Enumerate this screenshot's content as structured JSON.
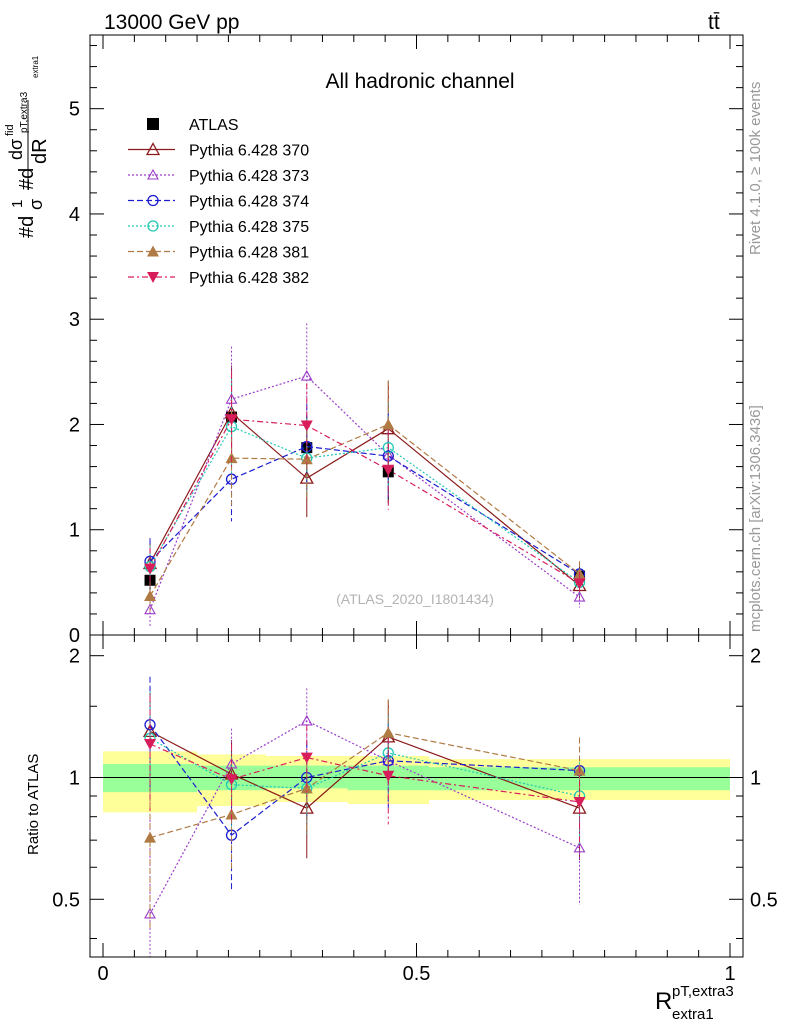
{
  "header": {
    "energy_label": "13000 GeV pp",
    "process_label": "tt̄"
  },
  "side_labels": {
    "rivet": "Rivet 4.1.0, ≥ 100k events",
    "mcplots": "mcplots.cern.ch [arXiv:1306.3436]"
  },
  "chart_data": [
    {
      "type": "line",
      "title": "All hadronic channel",
      "analysis_label": "(ATLAS_2020_I1801434)",
      "xlabel": "R_extra1^pT,extra3",
      "xlabel_main": "R",
      "xlabel_sup": "pT,extra3",
      "xlabel_sub": "extra1",
      "ylabel": "#d 1/σ #d dσ^fid/dR_pT,extra3/extra1",
      "xlim": [
        0,
        1
      ],
      "ylim": [
        0,
        5.7
      ],
      "x_ticks": [
        "0",
        "0.5",
        "1"
      ],
      "y_ticks": [
        "0",
        "1",
        "2",
        "3",
        "4",
        "5"
      ],
      "x": [
        0.075,
        0.205,
        0.325,
        0.455,
        0.76
      ],
      "series": [
        {
          "name": "ATLAS",
          "color": "#000000",
          "values": [
            0.52,
            2.07,
            1.78,
            1.55,
            0.56
          ],
          "err": [
            0.12,
            0.35,
            0.3,
            0.3,
            0.1
          ]
        },
        {
          "name": "Pythia 6.428 370",
          "color": "#8b1a1a",
          "values": [
            0.68,
            2.11,
            1.49,
            1.96,
            0.47
          ],
          "err": [
            0.2,
            0.45,
            0.37,
            0.45,
            0.12
          ]
        },
        {
          "name": "Pythia 6.428 373",
          "color": "#9a3cc8",
          "values": [
            0.24,
            2.24,
            2.46,
            1.71,
            0.36
          ],
          "err": [
            0.17,
            0.5,
            0.5,
            0.4,
            0.1
          ]
        },
        {
          "name": "Pythia 6.428 374",
          "color": "#1c1cd0",
          "values": [
            0.7,
            1.48,
            1.79,
            1.7,
            0.58
          ],
          "err": [
            0.22,
            0.4,
            0.4,
            0.4,
            0.12
          ]
        },
        {
          "name": "Pythia 6.428 375",
          "color": "#22c8b4",
          "values": [
            0.65,
            1.98,
            1.68,
            1.78,
            0.5
          ],
          "err": [
            0.2,
            0.45,
            0.38,
            0.42,
            0.12
          ]
        },
        {
          "name": "Pythia 6.428 381",
          "color": "#b07a45",
          "values": [
            0.37,
            1.68,
            1.67,
            2.0,
            0.58
          ],
          "err": [
            0.15,
            0.45,
            0.38,
            0.42,
            0.12
          ]
        },
        {
          "name": "Pythia 6.428 382",
          "color": "#d81e5a",
          "values": [
            0.63,
            2.05,
            1.99,
            1.57,
            0.49
          ],
          "err": [
            0.2,
            0.45,
            0.4,
            0.38,
            0.11
          ]
        }
      ]
    },
    {
      "type": "line",
      "title": "",
      "ylabel": "Ratio to ATLAS",
      "xlim": [
        0,
        1
      ],
      "ylim": [
        0.36,
        2.25
      ],
      "y_ticks": [
        "0.5",
        "1",
        "2"
      ],
      "y_ticks_right": [
        "0.5",
        "1",
        "2"
      ],
      "x": [
        0.075,
        0.205,
        0.325,
        0.455,
        0.76
      ],
      "reference_band": {
        "bin_edges": [
          0,
          0.15,
          0.26,
          0.39,
          0.52,
          1.0
        ],
        "stat_lo": [
          0.92,
          0.93,
          0.94,
          0.93,
          0.93
        ],
        "stat_hi": [
          1.08,
          1.07,
          1.07,
          1.07,
          1.06
        ],
        "total_lo": [
          0.82,
          0.85,
          0.87,
          0.86,
          0.88
        ],
        "total_hi": [
          1.16,
          1.14,
          1.13,
          1.13,
          1.11
        ],
        "stat_color": "#99ff99",
        "total_color": "#ffff99"
      },
      "series": [
        {
          "name": "Pythia 6.428 370",
          "values": [
            1.3,
            1.02,
            0.84,
            1.26,
            0.84
          ]
        },
        {
          "name": "Pythia 6.428 373",
          "values": [
            0.46,
            1.08,
            1.38,
            1.1,
            0.67
          ]
        },
        {
          "name": "Pythia 6.428 374",
          "values": [
            1.35,
            0.72,
            1.0,
            1.1,
            1.04
          ]
        },
        {
          "name": "Pythia 6.428 375",
          "values": [
            1.25,
            0.96,
            0.94,
            1.15,
            0.9
          ]
        },
        {
          "name": "Pythia 6.428 381",
          "values": [
            0.71,
            0.81,
            0.94,
            1.29,
            1.04
          ]
        },
        {
          "name": "Pythia 6.428 382",
          "values": [
            1.21,
            0.99,
            1.12,
            1.01,
            0.87
          ]
        }
      ]
    }
  ]
}
